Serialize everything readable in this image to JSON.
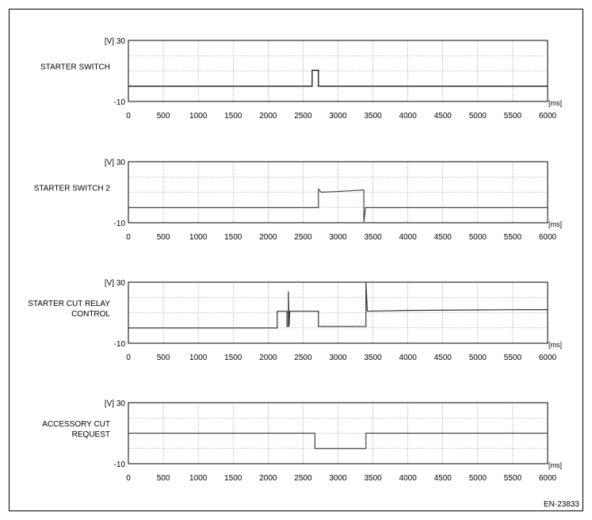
{
  "figure_id": "EN-23833",
  "chart_data": [
    {
      "type": "line",
      "signal_label": [
        "STARTER SWITCH"
      ],
      "x_unit": "[ms]",
      "y_unit": "[V]",
      "ymax_label": "30",
      "ymin_label": "-10",
      "xlim": [
        0,
        6000
      ],
      "ylim": [
        -10,
        30
      ],
      "xticks": [
        "0",
        "500",
        "1000",
        "1500",
        "2000",
        "2500",
        "3000",
        "3500",
        "4000",
        "4500",
        "5000",
        "5500",
        "6000"
      ],
      "grid": true,
      "series": [
        {
          "color": "#000000",
          "points": [
            [
              0,
              0
            ],
            [
              2630,
              0
            ],
            [
              2630,
              10.5
            ],
            [
              2720,
              10.5
            ],
            [
              2720,
              0
            ],
            [
              6000,
              0
            ]
          ]
        }
      ]
    },
    {
      "type": "line",
      "signal_label": [
        "STARTER SWITCH 2"
      ],
      "x_unit": "[ms]",
      "y_unit": "[V]",
      "ymax_label": "30",
      "ymin_label": "-10",
      "xlim": [
        0,
        6000
      ],
      "ylim": [
        -10,
        30
      ],
      "xticks": [
        "0",
        "500",
        "1000",
        "1500",
        "2000",
        "2500",
        "3000",
        "3500",
        "4000",
        "4500",
        "5000",
        "5500",
        "6000"
      ],
      "grid": true,
      "series": [
        {
          "color": "#444444",
          "points": [
            [
              0,
              0
            ],
            [
              2720,
              0
            ],
            [
              2720,
              12
            ],
            [
              2740,
              11
            ],
            [
              2760,
              10
            ],
            [
              3000,
              10.5
            ],
            [
              3370,
              11.5
            ],
            [
              3370,
              -9.5
            ],
            [
              3395,
              0
            ],
            [
              6000,
              0
            ]
          ]
        }
      ]
    },
    {
      "type": "line",
      "signal_label": [
        "STARTER CUT RELAY",
        "CONTROL"
      ],
      "x_unit": "[ms]",
      "y_unit": "[V]",
      "ymax_label": "30",
      "ymin_label": "-10",
      "xlim": [
        0,
        6000
      ],
      "ylim": [
        -10,
        30
      ],
      "xticks": [
        "0",
        "500",
        "1000",
        "1500",
        "2000",
        "2500",
        "3000",
        "3500",
        "4000",
        "4500",
        "5000",
        "5500",
        "6000"
      ],
      "grid": true,
      "series": [
        {
          "color": "#333333",
          "points": [
            [
              0,
              0
            ],
            [
              2130,
              0
            ],
            [
              2130,
              11
            ],
            [
              2270,
              11
            ],
            [
              2270,
              1
            ],
            [
              2290,
              1
            ],
            [
              2290,
              24
            ],
            [
              2300,
              1
            ],
            [
              2310,
              11
            ],
            [
              2720,
              11
            ],
            [
              2720,
              1
            ],
            [
              3400,
              1
            ],
            [
              3400,
              30
            ],
            [
              3420,
              11
            ],
            [
              4000,
              11.5
            ],
            [
              5000,
              11.8
            ],
            [
              5600,
              12
            ],
            [
              6000,
              12
            ]
          ]
        }
      ]
    },
    {
      "type": "line",
      "signal_label": [
        "ACCESSORY CUT",
        "REQUEST"
      ],
      "x_unit": "[ms]",
      "y_unit": "[V]",
      "ymax_label": "30",
      "ymin_label": "-10",
      "xlim": [
        0,
        6000
      ],
      "ylim": [
        -10,
        30
      ],
      "xticks": [
        "0",
        "500",
        "1000",
        "1500",
        "2000",
        "2500",
        "3000",
        "3500",
        "4000",
        "4500",
        "5000",
        "5500",
        "6000"
      ],
      "grid": true,
      "series": [
        {
          "color": "#444444",
          "points": [
            [
              0,
              10
            ],
            [
              2670,
              10
            ],
            [
              2670,
              0
            ],
            [
              3400,
              0
            ],
            [
              3400,
              10
            ],
            [
              6000,
              10
            ]
          ]
        }
      ]
    }
  ]
}
